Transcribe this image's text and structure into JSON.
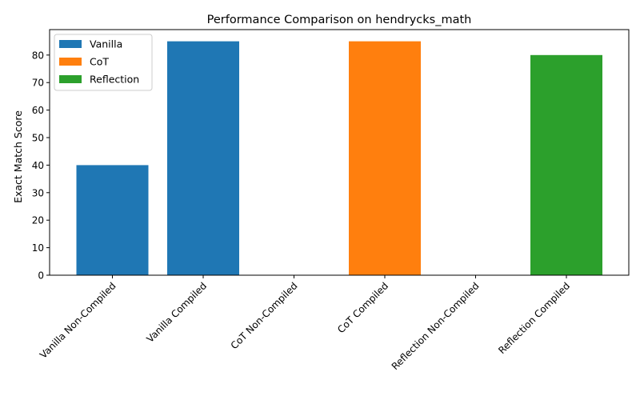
{
  "chart_data": {
    "type": "bar",
    "title": "Performance Comparison on hendrycks_math",
    "xlabel": "",
    "ylabel": "Exact Match Score",
    "ylim": [
      0,
      89.25
    ],
    "yticks": [
      0,
      10,
      20,
      30,
      40,
      50,
      60,
      70,
      80
    ],
    "categories": [
      "Vanilla Non-Compiled",
      "Vanilla Compiled",
      "CoT Non-Compiled",
      "CoT Compiled",
      "Reflection Non-Compiled",
      "Reflection Compiled"
    ],
    "values": [
      40,
      85,
      0,
      85,
      0,
      80
    ],
    "bar_series": [
      "Vanilla",
      "Vanilla",
      "CoT",
      "CoT",
      "Reflection",
      "Reflection"
    ],
    "series": [
      {
        "name": "Vanilla",
        "color": "#1f77b4"
      },
      {
        "name": "CoT",
        "color": "#ff7f0e"
      },
      {
        "name": "Reflection",
        "color": "#2ca02c"
      }
    ],
    "legend_position": "top-left",
    "grid": false
  }
}
